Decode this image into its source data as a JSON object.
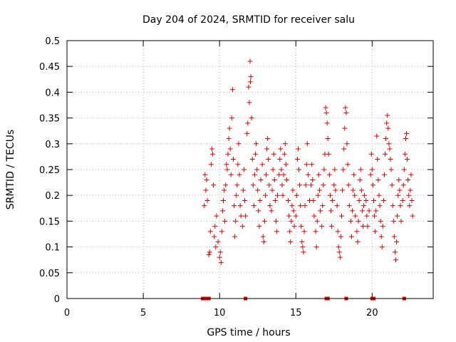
{
  "chart_data": {
    "type": "scatter",
    "title": "Day 204 of 2024, SRMTID for receiver salu",
    "xlabel": "GPS time / hours",
    "ylabel": "SRMTID / TECUs",
    "xlim": [
      0,
      24
    ],
    "ylim": [
      0,
      0.5
    ],
    "x_ticks": [
      0,
      5,
      10,
      15,
      20
    ],
    "x_tick_labels": [
      "0",
      "5",
      "10",
      "15",
      "20"
    ],
    "y_ticks": [
      0,
      0.05,
      0.1,
      0.15,
      0.2,
      0.25,
      0.3,
      0.35,
      0.4,
      0.45,
      0.5
    ],
    "y_tick_labels": [
      "0",
      "0.05",
      "0.1",
      "0.15",
      "0.2",
      "0.25",
      "0.3",
      "0.35",
      "0.4",
      "0.45",
      "0.5"
    ],
    "grid": true,
    "marker": "plus",
    "series_color": "#dd0000",
    "zero_markers_x": [
      8.9,
      9.1,
      9.3,
      11.7,
      17.0,
      17.1,
      18.3,
      20.0,
      20.1,
      22.1
    ],
    "series": [
      {
        "name": "SRMTID",
        "points": [
          [
            9.0,
            0.18
          ],
          [
            9.05,
            0.24
          ],
          [
            9.1,
            0.21
          ],
          [
            9.15,
            0.23
          ],
          [
            9.2,
            0.19
          ],
          [
            9.3,
            0.085
          ],
          [
            9.35,
            0.09
          ],
          [
            9.4,
            0.13
          ],
          [
            9.45,
            0.26
          ],
          [
            9.5,
            0.29
          ],
          [
            9.55,
            0.28
          ],
          [
            9.6,
            0.22
          ],
          [
            9.65,
            0.12
          ],
          [
            9.7,
            0.14
          ],
          [
            9.75,
            0.1
          ],
          [
            9.8,
            0.16
          ],
          [
            9.9,
            0.11
          ],
          [
            10.0,
            0.08
          ],
          [
            10.05,
            0.09
          ],
          [
            10.1,
            0.07
          ],
          [
            10.15,
            0.13
          ],
          [
            10.2,
            0.17
          ],
          [
            10.25,
            0.19
          ],
          [
            10.3,
            0.21
          ],
          [
            10.35,
            0.15
          ],
          [
            10.4,
            0.22
          ],
          [
            10.45,
            0.26
          ],
          [
            10.5,
            0.25
          ],
          [
            10.55,
            0.28
          ],
          [
            10.6,
            0.31
          ],
          [
            10.65,
            0.33
          ],
          [
            10.7,
            0.29
          ],
          [
            10.75,
            0.24
          ],
          [
            10.8,
            0.35
          ],
          [
            10.85,
            0.405
          ],
          [
            10.9,
            0.27
          ],
          [
            10.95,
            0.18
          ],
          [
            11.0,
            0.12
          ],
          [
            11.05,
            0.15
          ],
          [
            11.1,
            0.2
          ],
          [
            11.15,
            0.22
          ],
          [
            11.2,
            0.26
          ],
          [
            11.25,
            0.3
          ],
          [
            11.3,
            0.24
          ],
          [
            11.35,
            0.18
          ],
          [
            11.4,
            0.16
          ],
          [
            11.5,
            0.14
          ],
          [
            11.55,
            0.21
          ],
          [
            11.6,
            0.25
          ],
          [
            11.65,
            0.19
          ],
          [
            11.7,
            0.16
          ],
          [
            11.8,
            0.32
          ],
          [
            11.85,
            0.34
          ],
          [
            11.9,
            0.41
          ],
          [
            11.95,
            0.38
          ],
          [
            12.0,
            0.46
          ],
          [
            12.02,
            0.42
          ],
          [
            12.05,
            0.43
          ],
          [
            12.1,
            0.35
          ],
          [
            12.15,
            0.27
          ],
          [
            12.2,
            0.22
          ],
          [
            12.25,
            0.18
          ],
          [
            12.3,
            0.24
          ],
          [
            12.35,
            0.28
          ],
          [
            12.4,
            0.3
          ],
          [
            12.45,
            0.25
          ],
          [
            12.5,
            0.21
          ],
          [
            12.55,
            0.17
          ],
          [
            12.6,
            0.14
          ],
          [
            12.65,
            0.19
          ],
          [
            12.7,
            0.23
          ],
          [
            12.8,
            0.26
          ],
          [
            12.85,
            0.12
          ],
          [
            12.9,
            0.11
          ],
          [
            12.95,
            0.15
          ],
          [
            13.0,
            0.2
          ],
          [
            13.05,
            0.24
          ],
          [
            13.1,
            0.29
          ],
          [
            13.15,
            0.31
          ],
          [
            13.2,
            0.27
          ],
          [
            13.25,
            0.22
          ],
          [
            13.3,
            0.18
          ],
          [
            13.4,
            0.17
          ],
          [
            13.45,
            0.21
          ],
          [
            13.5,
            0.25
          ],
          [
            13.55,
            0.28
          ],
          [
            13.6,
            0.23
          ],
          [
            13.65,
            0.19
          ],
          [
            13.7,
            0.15
          ],
          [
            13.75,
            0.13
          ],
          [
            13.8,
            0.2
          ],
          [
            13.9,
            0.24
          ],
          [
            13.95,
            0.27
          ],
          [
            14.0,
            0.29
          ],
          [
            14.05,
            0.25
          ],
          [
            14.1,
            0.22
          ],
          [
            14.15,
            0.2
          ],
          [
            14.2,
            0.24
          ],
          [
            14.25,
            0.28
          ],
          [
            14.3,
            0.3
          ],
          [
            14.35,
            0.26
          ],
          [
            14.4,
            0.23
          ],
          [
            14.5,
            0.19
          ],
          [
            14.55,
            0.16
          ],
          [
            14.6,
            0.13
          ],
          [
            14.65,
            0.11
          ],
          [
            14.7,
            0.15
          ],
          [
            14.75,
            0.18
          ],
          [
            14.8,
            0.21
          ],
          [
            14.85,
            0.17
          ],
          [
            14.9,
            0.14
          ],
          [
            15.0,
            0.16
          ],
          [
            15.05,
            0.2
          ],
          [
            15.1,
            0.27
          ],
          [
            15.15,
            0.29
          ],
          [
            15.2,
            0.25
          ],
          [
            15.25,
            0.22
          ],
          [
            15.3,
            0.18
          ],
          [
            15.35,
            0.14
          ],
          [
            15.4,
            0.11
          ],
          [
            15.45,
            0.1
          ],
          [
            15.5,
            0.09
          ],
          [
            15.55,
            0.13
          ],
          [
            15.6,
            0.18
          ],
          [
            15.65,
            0.22
          ],
          [
            15.7,
            0.26
          ],
          [
            15.75,
            0.3
          ],
          [
            15.8,
            0.24
          ],
          [
            15.9,
            0.19
          ],
          [
            16.0,
            0.22
          ],
          [
            16.05,
            0.26
          ],
          [
            16.1,
            0.23
          ],
          [
            16.15,
            0.19
          ],
          [
            16.2,
            0.16
          ],
          [
            16.3,
            0.13
          ],
          [
            16.35,
            0.1
          ],
          [
            16.4,
            0.15
          ],
          [
            16.45,
            0.2
          ],
          [
            16.5,
            0.24
          ],
          [
            16.55,
            0.21
          ],
          [
            16.6,
            0.17
          ],
          [
            16.7,
            0.14
          ],
          [
            16.75,
            0.18
          ],
          [
            16.8,
            0.22
          ],
          [
            16.85,
            0.25
          ],
          [
            16.9,
            0.28
          ],
          [
            16.95,
            0.37
          ],
          [
            17.0,
            0.36
          ],
          [
            17.05,
            0.34
          ],
          [
            17.1,
            0.31
          ],
          [
            17.15,
            0.28
          ],
          [
            17.2,
            0.24
          ],
          [
            17.25,
            0.2
          ],
          [
            17.3,
            0.17
          ],
          [
            17.35,
            0.14
          ],
          [
            17.4,
            0.19
          ],
          [
            17.5,
            0.22
          ],
          [
            17.55,
            0.25
          ],
          [
            17.6,
            0.21
          ],
          [
            17.7,
            0.18
          ],
          [
            17.75,
            0.13
          ],
          [
            17.8,
            0.1
          ],
          [
            17.85,
            0.09
          ],
          [
            17.9,
            0.08
          ],
          [
            17.95,
            0.12
          ],
          [
            18.0,
            0.16
          ],
          [
            18.05,
            0.21
          ],
          [
            18.1,
            0.25
          ],
          [
            18.15,
            0.29
          ],
          [
            18.2,
            0.33
          ],
          [
            18.25,
            0.37
          ],
          [
            18.3,
            0.36
          ],
          [
            18.35,
            0.3
          ],
          [
            18.4,
            0.26
          ],
          [
            18.45,
            0.22
          ],
          [
            18.5,
            0.18
          ],
          [
            18.6,
            0.15
          ],
          [
            18.65,
            0.12
          ],
          [
            18.7,
            0.17
          ],
          [
            18.75,
            0.21
          ],
          [
            18.8,
            0.24
          ],
          [
            18.85,
            0.2
          ],
          [
            18.9,
            0.16
          ],
          [
            19.0,
            0.13
          ],
          [
            19.05,
            0.11
          ],
          [
            19.1,
            0.15
          ],
          [
            19.15,
            0.19
          ],
          [
            19.2,
            0.23
          ],
          [
            19.25,
            0.25
          ],
          [
            19.3,
            0.21
          ],
          [
            19.35,
            0.17
          ],
          [
            19.4,
            0.14
          ],
          [
            19.45,
            0.18
          ],
          [
            19.5,
            0.2
          ],
          [
            19.6,
            0.19
          ],
          [
            19.65,
            0.16
          ],
          [
            19.7,
            0.14
          ],
          [
            19.8,
            0.17
          ],
          [
            19.9,
            0.24
          ],
          [
            19.95,
            0.28
          ],
          [
            20.0,
            0.25
          ],
          [
            20.05,
            0.22
          ],
          [
            20.1,
            0.19
          ],
          [
            20.15,
            0.16
          ],
          [
            20.2,
            0.13
          ],
          [
            20.25,
            0.17
          ],
          [
            20.3,
            0.315
          ],
          [
            20.35,
            0.27
          ],
          [
            20.4,
            0.23
          ],
          [
            20.45,
            0.2
          ],
          [
            20.5,
            0.18
          ],
          [
            20.55,
            0.15
          ],
          [
            20.6,
            0.12
          ],
          [
            20.65,
            0.1
          ],
          [
            20.7,
            0.14
          ],
          [
            20.75,
            0.19
          ],
          [
            20.8,
            0.24
          ],
          [
            20.85,
            0.28
          ],
          [
            20.9,
            0.31
          ],
          [
            20.95,
            0.34
          ],
          [
            21.0,
            0.355
          ],
          [
            21.05,
            0.33
          ],
          [
            21.1,
            0.3
          ],
          [
            21.15,
            0.29
          ],
          [
            21.2,
            0.27
          ],
          [
            21.25,
            0.25
          ],
          [
            21.3,
            0.22
          ],
          [
            21.35,
            0.18
          ],
          [
            21.4,
            0.15
          ],
          [
            21.45,
            0.12
          ],
          [
            21.5,
            0.09
          ],
          [
            21.55,
            0.075
          ],
          [
            21.6,
            0.11
          ],
          [
            21.65,
            0.16
          ],
          [
            21.7,
            0.2
          ],
          [
            21.75,
            0.23
          ],
          [
            21.8,
            0.21
          ],
          [
            21.85,
            0.18
          ],
          [
            21.9,
            0.15
          ],
          [
            22.0,
            0.19
          ],
          [
            22.05,
            0.22
          ],
          [
            22.1,
            0.25
          ],
          [
            22.15,
            0.28
          ],
          [
            22.2,
            0.31
          ],
          [
            22.25,
            0.32
          ],
          [
            22.3,
            0.27
          ],
          [
            22.35,
            0.23
          ],
          [
            22.4,
            0.2
          ],
          [
            22.45,
            0.18
          ],
          [
            22.5,
            0.21
          ],
          [
            22.55,
            0.24
          ],
          [
            22.6,
            0.19
          ],
          [
            22.65,
            0.16
          ]
        ]
      }
    ]
  }
}
